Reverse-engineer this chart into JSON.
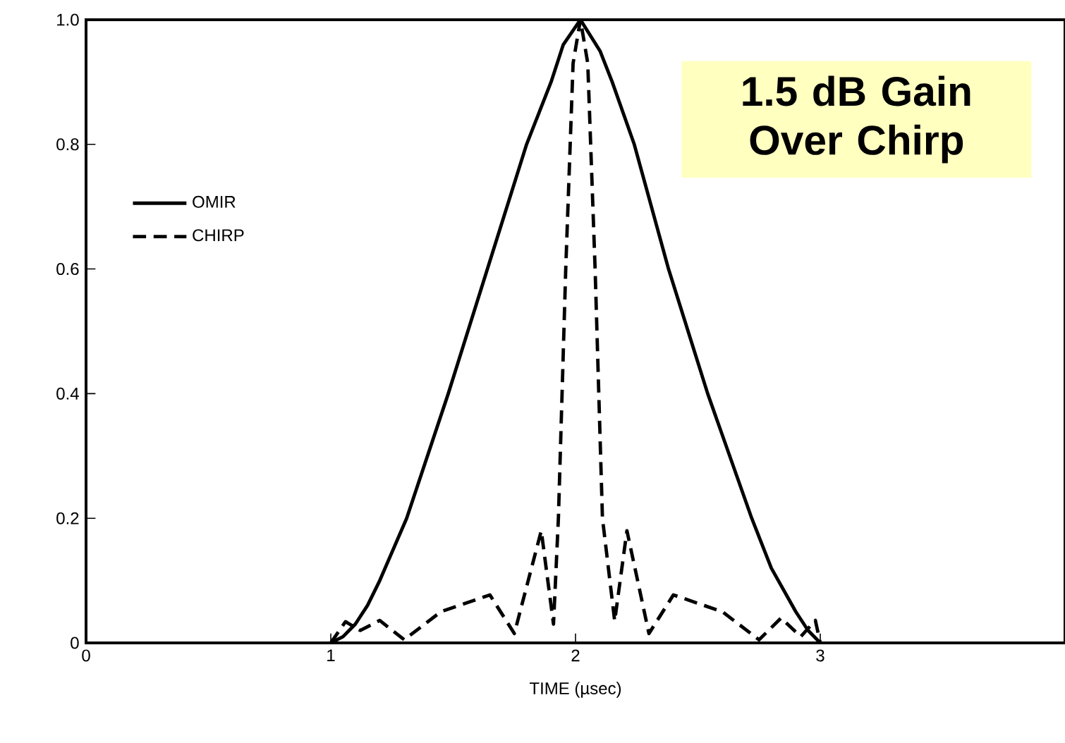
{
  "chart_data": {
    "type": "line",
    "xlabel": "TIME (µsec)",
    "xlim": [
      0,
      4
    ],
    "xticks": [
      0,
      1,
      2,
      3
    ],
    "ylim": [
      0,
      1
    ],
    "yticks": [
      0,
      0.2,
      0.4,
      0.6,
      0.8,
      {
        "value": 1,
        "label": "1.0"
      }
    ],
    "legend": "top left",
    "marker": "none",
    "annotations": [
      "1.5 dB Gain Over Chirp"
    ],
    "series": [
      {
        "name": "OMIR",
        "color": "#000000",
        "line_style": "solid",
        "x": [
          1.0,
          1.05,
          1.1,
          1.15,
          1.2,
          1.31,
          1.48,
          1.64,
          1.8,
          1.9,
          1.95,
          2.02,
          2.1,
          2.15,
          2.24,
          2.38,
          2.54,
          2.72,
          2.8,
          2.9,
          2.95,
          3.0
        ],
        "values": [
          0,
          0.01,
          0.03,
          0.06,
          0.1,
          0.2,
          0.4,
          0.6,
          0.8,
          0.9,
          0.96,
          1.0,
          0.95,
          0.9,
          0.8,
          0.6,
          0.4,
          0.2,
          0.12,
          0.05,
          0.02,
          0
        ]
      },
      {
        "name": "CHIRP",
        "color": "#000000",
        "line_style": "dashed",
        "x": [
          1.0,
          1.06,
          1.12,
          1.2,
          1.3,
          1.45,
          1.65,
          1.75,
          1.86,
          1.91,
          1.93,
          1.96,
          1.99,
          2.02,
          2.05,
          2.08,
          2.11,
          2.16,
          2.21,
          2.3,
          2.4,
          2.6,
          2.75,
          2.84,
          2.92,
          2.98,
          3.0
        ],
        "values": [
          0,
          0.034,
          0.02,
          0.036,
          0.005,
          0.05,
          0.077,
          0.015,
          0.18,
          0.03,
          0.2,
          0.6,
          0.93,
          1.0,
          0.93,
          0.6,
          0.2,
          0.035,
          0.18,
          0.015,
          0.077,
          0.05,
          0.005,
          0.04,
          0.01,
          0.036,
          0
        ]
      }
    ]
  }
}
